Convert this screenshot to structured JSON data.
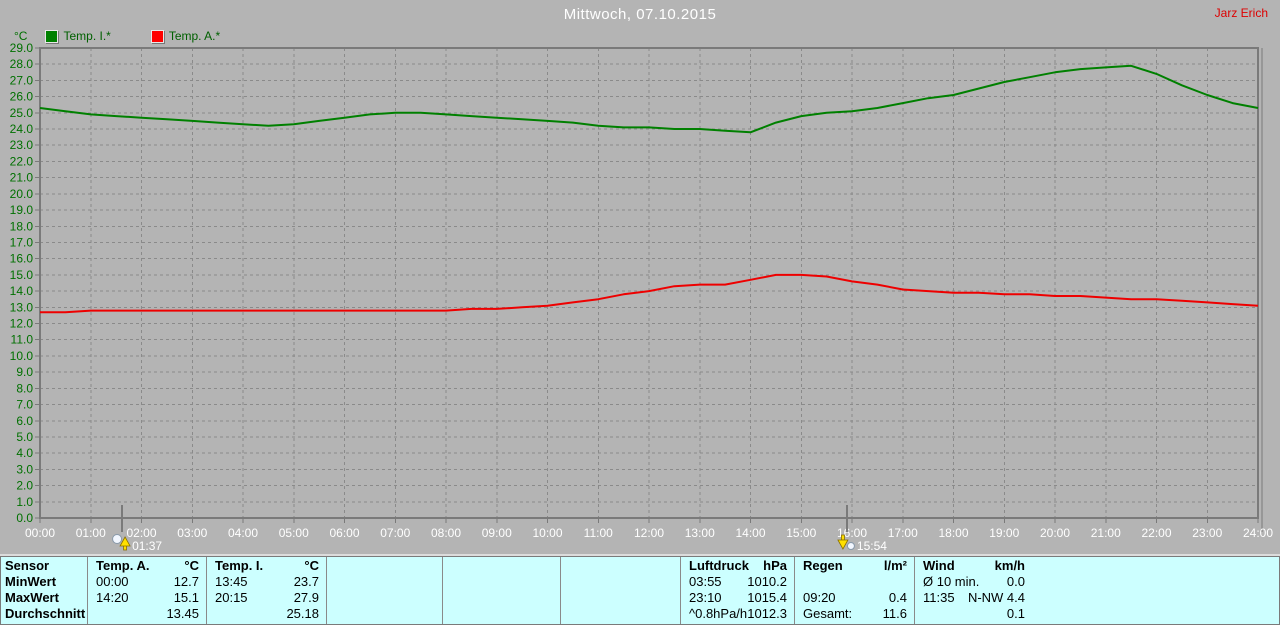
{
  "header": {
    "title": "Mittwoch, 07.10.2015",
    "user": "Jarz Erich"
  },
  "legend": {
    "axis_unit": "°C",
    "items": [
      {
        "label": "Temp. I.*",
        "color": "#008000"
      },
      {
        "label": "Temp. A.*",
        "color": "#ff0000"
      }
    ]
  },
  "chart_data": {
    "type": "line",
    "title": "Mittwoch, 07.10.2015",
    "xlabel": "",
    "ylabel": "°C",
    "ylim": [
      0,
      29
    ],
    "ystep": 1,
    "xlim_hours": [
      0,
      24
    ],
    "x_step_hours": 0.5,
    "grid": "dashed",
    "legend_position": "top-left",
    "x_ticks": [
      "00:00",
      "01:00",
      "02:00",
      "03:00",
      "04:00",
      "05:00",
      "06:00",
      "07:00",
      "08:00",
      "09:00",
      "10:00",
      "11:00",
      "12:00",
      "13:00",
      "14:00",
      "15:00",
      "16:00",
      "17:00",
      "18:00",
      "19:00",
      "20:00",
      "21:00",
      "22:00",
      "23:00",
      "24:00"
    ],
    "y_ticks": [
      "29.0",
      "28.0",
      "27.0",
      "26.0",
      "25.0",
      "24.0",
      "23.0",
      "22.0",
      "21.0",
      "20.0",
      "19.0",
      "18.0",
      "17.0",
      "16.0",
      "15.0",
      "14.0",
      "13.0",
      "12.0",
      "11.0",
      "10.0",
      "9.0",
      "8.0",
      "7.0",
      "6.0",
      "5.0",
      "4.0",
      "3.0",
      "2.0",
      "1.0",
      "0.0"
    ],
    "series": [
      {
        "name": "Temp. I.*",
        "color": "#008000",
        "values": [
          25.3,
          25.1,
          24.9,
          24.8,
          24.7,
          24.6,
          24.5,
          24.4,
          24.3,
          24.2,
          24.3,
          24.5,
          24.7,
          24.9,
          25.0,
          25.0,
          24.9,
          24.8,
          24.7,
          24.6,
          24.5,
          24.4,
          24.2,
          24.1,
          24.1,
          24.0,
          24.0,
          23.9,
          23.8,
          24.4,
          24.8,
          25.0,
          25.1,
          25.3,
          25.6,
          25.9,
          26.1,
          26.5,
          26.9,
          27.2,
          27.5,
          27.7,
          27.8,
          27.9,
          27.4,
          26.7,
          26.1,
          25.6,
          25.3
        ]
      },
      {
        "name": "Temp. A.*",
        "color": "#ee0000",
        "values": [
          12.7,
          12.7,
          12.8,
          12.8,
          12.8,
          12.8,
          12.8,
          12.8,
          12.8,
          12.8,
          12.8,
          12.8,
          12.8,
          12.8,
          12.8,
          12.8,
          12.8,
          12.9,
          12.9,
          13.0,
          13.1,
          13.3,
          13.5,
          13.8,
          14.0,
          14.3,
          14.4,
          14.4,
          14.7,
          15.0,
          15.0,
          14.9,
          14.6,
          14.4,
          14.1,
          14.0,
          13.9,
          13.9,
          13.8,
          13.8,
          13.7,
          13.7,
          13.6,
          13.5,
          13.5,
          13.4,
          13.3,
          13.2,
          13.1
        ]
      }
    ],
    "markers": [
      {
        "label": "01:37",
        "hours": 1.617,
        "icon": "moonrise-icon"
      },
      {
        "label": "15:54",
        "hours": 15.9,
        "icon": "moonset-icon"
      }
    ]
  },
  "table": {
    "row_labels": [
      "Sensor",
      "MinWert",
      "MaxWert",
      "Durchschnitt"
    ],
    "columns": [
      {
        "name": "Temp. A.",
        "unit": "°C",
        "rows": [
          [
            "00:00",
            "12.7"
          ],
          [
            "14:20",
            "15.1"
          ],
          [
            "",
            "13.45"
          ]
        ]
      },
      {
        "name": "Temp. I.",
        "unit": "°C",
        "rows": [
          [
            "13:45",
            "23.7"
          ],
          [
            "20:15",
            "27.9"
          ],
          [
            "",
            "25.18"
          ]
        ]
      },
      {
        "name": "",
        "unit": "",
        "rows": [
          [
            "",
            ""
          ],
          [
            "",
            ""
          ],
          [
            "",
            ""
          ]
        ]
      },
      {
        "name": "",
        "unit": "",
        "rows": [
          [
            "",
            ""
          ],
          [
            "",
            ""
          ],
          [
            "",
            ""
          ]
        ]
      },
      {
        "name": "",
        "unit": "",
        "rows": [
          [
            "",
            ""
          ],
          [
            "",
            ""
          ],
          [
            "",
            ""
          ]
        ]
      },
      {
        "name": "Luftdruck",
        "unit": "hPa",
        "rows": [
          [
            "03:55",
            "1010.2"
          ],
          [
            "23:10",
            "1015.4"
          ],
          [
            "^0.8hPa/h",
            "1012.3"
          ]
        ]
      },
      {
        "name": "Regen",
        "unit": "l/m²",
        "rows": [
          [
            "",
            ""
          ],
          [
            "09:20",
            "0.4"
          ],
          [
            "Gesamt:",
            "11.6"
          ]
        ]
      },
      {
        "name": "Wind",
        "unit": "km/h",
        "rows": [
          [
            "Ø 10 min.",
            "0.0"
          ],
          [
            "11:35",
            "N-NW 4.4"
          ],
          [
            "",
            "0.1"
          ]
        ]
      }
    ]
  },
  "colors": {
    "background": "#b4b4b4",
    "grid": "#8a8a8a",
    "axis": "#7a7a7a",
    "y_label": "#007000",
    "x_label": "#ffffff",
    "title": "#ffffff",
    "user": "#dd0000",
    "table_background": "#ccffff",
    "marker_arrow": "#ffe000"
  }
}
